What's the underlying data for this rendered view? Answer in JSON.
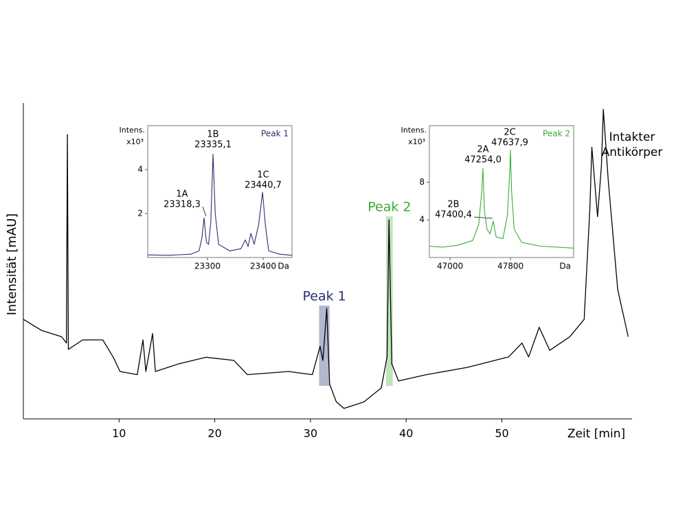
{
  "chart_data": [
    {
      "type": "line",
      "xlabel": "Zeit [min]",
      "ylabel": "Intensität [mAU]",
      "xlim": [
        0,
        63.6
      ],
      "ylim": [
        0,
        100
      ],
      "xticks": [
        10,
        20,
        30,
        40,
        50
      ],
      "color": "#000000",
      "x": [
        0,
        1.9,
        4.0,
        4.5,
        4.6,
        4.7,
        6.2,
        8.3,
        9.4,
        10.1,
        11.9,
        12.5,
        12.8,
        13.5,
        13.8,
        16.2,
        19.1,
        22.0,
        23.4,
        27.7,
        30.2,
        31.0,
        31.3,
        31.7,
        32.0,
        32.7,
        33.5,
        35.6,
        37.4,
        38.0,
        38.2,
        38.5,
        39.2,
        42.1,
        46.4,
        50.7,
        52.1,
        52.8,
        53.9,
        55.0,
        57.1,
        58.6,
        59.2,
        59.4,
        60.0,
        60.4,
        60.6,
        61.1,
        62.1,
        63.2
      ],
      "values": [
        31.5,
        28,
        26,
        24,
        90,
        22,
        25,
        25,
        19.5,
        15,
        14,
        25,
        15,
        27,
        15,
        17.4,
        19.5,
        18.5,
        14,
        15,
        14,
        23,
        18.5,
        35,
        11,
        5.4,
        3.3,
        5.4,
        9.8,
        19.6,
        63,
        17.4,
        12,
        14,
        16.3,
        19.6,
        24,
        19.6,
        29,
        21.7,
        26,
        31.5,
        67,
        86,
        64,
        80,
        98,
        76,
        41,
        26
      ],
      "highlights": [
        {
          "label": "Peak 1",
          "xrange": [
            30.9,
            32.0
          ],
          "color": "#9aa0bd",
          "text_color": "#2a2f6e"
        },
        {
          "label": "Peak 2",
          "xrange": [
            37.9,
            38.6
          ],
          "color": "#a8dba3",
          "text_color": "#3aaa35"
        }
      ],
      "annotation": [
        "Intakter",
        "Antikörper"
      ]
    },
    {
      "type": "line",
      "title": "Peak 1",
      "color": "#2a2f6e",
      "xlabel": "Da",
      "ylabel": "Intens.",
      "yunit": "x10³",
      "xlim": [
        23192.6,
        23451.9
      ],
      "ylim": [
        0,
        6
      ],
      "xticks": [
        23300,
        23400
      ],
      "yticks": [
        2,
        4
      ],
      "x": [
        23193,
        23230,
        23270,
        23285,
        23290,
        23294,
        23298,
        23302,
        23306,
        23310,
        23314,
        23320,
        23340,
        23360,
        23368,
        23373,
        23378,
        23384,
        23392,
        23399,
        23404,
        23410,
        23430,
        23452
      ],
      "values": [
        0.12,
        0.1,
        0.15,
        0.3,
        0.9,
        1.8,
        0.7,
        0.6,
        1.6,
        4.7,
        2.0,
        0.6,
        0.3,
        0.4,
        0.8,
        0.5,
        1.1,
        0.6,
        1.5,
        2.97,
        1.5,
        0.3,
        0.15,
        0.1
      ],
      "peak_labels": [
        {
          "name": "1A",
          "mass": "23318,3"
        },
        {
          "name": "1B",
          "mass": "23335,1"
        },
        {
          "name": "1C",
          "mass": "23440,7"
        }
      ]
    },
    {
      "type": "line",
      "title": "Peak 2",
      "color": "#3aaa35",
      "xlabel": "Da",
      "ylabel": "Intens.",
      "yunit": "x10³",
      "xlim": [
        46727,
        48636
      ],
      "ylim": [
        0,
        14
      ],
      "xticks": [
        47000,
        47800
      ],
      "yticks": [
        4,
        8
      ],
      "x": [
        46727,
        46900,
        47100,
        47300,
        47380,
        47420,
        47436,
        47455,
        47490,
        47530,
        47573,
        47610,
        47700,
        47760,
        47790,
        47800,
        47815,
        47850,
        47950,
        48200,
        48636
      ],
      "values": [
        1.2,
        1.1,
        1.3,
        1.8,
        3.5,
        7,
        9.45,
        5,
        3.0,
        2.5,
        3.85,
        2.2,
        2.0,
        4.5,
        9.0,
        11.4,
        7,
        3,
        1.6,
        1.2,
        1.0
      ],
      "peak_labels": [
        {
          "name": "2A",
          "mass": "47254,0"
        },
        {
          "name": "2B",
          "mass": "47400,4"
        },
        {
          "name": "2C",
          "mass": "47637,9"
        }
      ]
    }
  ]
}
